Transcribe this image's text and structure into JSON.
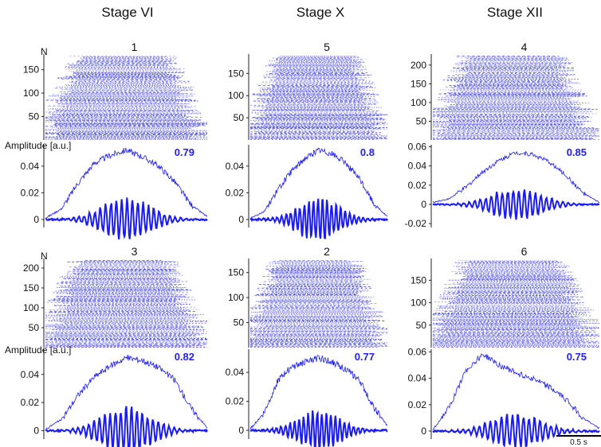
{
  "columns": [
    "Stage VI",
    "Stage X",
    "Stage XII"
  ],
  "colors": {
    "trace": "#1a1aff",
    "raster": "#2a2ad8",
    "axis": "#222222",
    "label": "#2222ee"
  },
  "labels": {
    "raster_ylabel": "N",
    "amp_ylabel": "Amplitude [a.u.]",
    "scale_bar": "0.5 s"
  },
  "chart_data": [
    {
      "type": "raster",
      "panel": "1",
      "column": "Stage VI",
      "n_rows": 180,
      "yticks": [
        50,
        100,
        150
      ],
      "ylim": [
        0,
        180
      ]
    },
    {
      "type": "line",
      "panel": "1",
      "column": "Stage VI",
      "value_label": "0.79",
      "yticks": [
        0,
        0.02,
        0.04
      ],
      "ylim": [
        -0.006,
        0.056
      ],
      "series": [
        {
          "shape": "envelope",
          "x": [
            0,
            0.2,
            0.4,
            0.6,
            0.8,
            1.0,
            1.2,
            1.4,
            1.6,
            1.8,
            2.0
          ],
          "values": [
            0.001,
            0.008,
            0.027,
            0.042,
            0.048,
            0.052,
            0.047,
            0.04,
            0.028,
            0.011,
            0.002
          ]
        },
        {
          "shape": "oscillation",
          "amplitude": 0.016
        }
      ]
    },
    {
      "type": "raster",
      "panel": "3",
      "column": "Stage X",
      "n_rows": 220,
      "yticks": [
        50,
        100,
        150,
        200
      ],
      "ylim": [
        0,
        220
      ]
    },
    {
      "type": "line",
      "panel": "3",
      "column": "Stage X",
      "value_label": "0.82",
      "yticks": [
        0,
        0.02,
        0.04
      ],
      "ylim": [
        -0.006,
        0.058
      ],
      "series": [
        {
          "shape": "envelope",
          "x": [
            0,
            0.2,
            0.4,
            0.6,
            0.8,
            1.0,
            1.2,
            1.4,
            1.6,
            1.8,
            2.0
          ],
          "values": [
            0.001,
            0.008,
            0.025,
            0.038,
            0.046,
            0.052,
            0.05,
            0.045,
            0.036,
            0.016,
            0.002
          ]
        },
        {
          "shape": "oscillation",
          "amplitude": 0.017
        }
      ]
    },
    {
      "type": "raster",
      "panel": "5",
      "column": "Stage XII",
      "n_rows": 190,
      "yticks": [
        50,
        100,
        150
      ],
      "ylim": [
        0,
        190
      ]
    },
    {
      "type": "line",
      "panel": "5",
      "column": "Stage XII",
      "value_label": "0.8",
      "yticks": [
        0,
        0.02,
        0.04
      ],
      "ylim": [
        -0.006,
        0.056
      ],
      "series": [
        {
          "shape": "envelope",
          "x": [
            0,
            0.2,
            0.4,
            0.6,
            0.8,
            1.0,
            1.2,
            1.4,
            1.6,
            1.8,
            2.0
          ],
          "values": [
            0.001,
            0.006,
            0.022,
            0.036,
            0.046,
            0.052,
            0.049,
            0.042,
            0.03,
            0.012,
            0.002
          ]
        },
        {
          "shape": "oscillation",
          "amplitude": 0.016
        }
      ]
    },
    {
      "type": "raster",
      "panel": "2",
      "column": "Stage VI",
      "n_rows": 175,
      "yticks": [
        50,
        100,
        150
      ],
      "ylim": [
        0,
        175
      ]
    },
    {
      "type": "line",
      "panel": "2",
      "column": "Stage VI",
      "value_label": "0.77",
      "yticks": [
        0,
        0.02,
        0.04
      ],
      "ylim": [
        -0.006,
        0.056
      ],
      "series": [
        {
          "shape": "envelope",
          "x": [
            0,
            0.2,
            0.4,
            0.6,
            0.8,
            1.0,
            1.2,
            1.4,
            1.6,
            1.8,
            2.0
          ],
          "values": [
            0.001,
            0.012,
            0.034,
            0.044,
            0.047,
            0.05,
            0.047,
            0.042,
            0.034,
            0.016,
            0.003
          ]
        },
        {
          "shape": "oscillation",
          "amplitude": 0.014
        }
      ]
    },
    {
      "type": "raster",
      "panel": "4",
      "column": "Stage X",
      "n_rows": 225,
      "yticks": [
        50,
        100,
        150,
        200
      ],
      "ylim": [
        0,
        225
      ]
    },
    {
      "type": "line",
      "panel": "4",
      "column": "Stage X",
      "value_label": "0.85",
      "yticks": [
        -0.02,
        0,
        0.02,
        0.04,
        0.06
      ],
      "ylim": [
        -0.024,
        0.062
      ],
      "series": [
        {
          "shape": "envelope",
          "x": [
            0,
            0.2,
            0.4,
            0.6,
            0.8,
            1.0,
            1.2,
            1.4,
            1.6,
            1.8,
            2.0
          ],
          "values": [
            0.002,
            0.006,
            0.018,
            0.034,
            0.046,
            0.054,
            0.052,
            0.044,
            0.03,
            0.012,
            0.002
          ]
        },
        {
          "shape": "oscillation",
          "amplitude": 0.016
        }
      ]
    },
    {
      "type": "raster",
      "panel": "6",
      "column": "Stage XII",
      "n_rows": 195,
      "yticks": [
        50,
        100,
        150
      ],
      "ylim": [
        0,
        195
      ]
    },
    {
      "type": "line",
      "panel": "6",
      "column": "Stage XII",
      "value_label": "0.75",
      "yticks": [
        0,
        0.02,
        0.04,
        0.06
      ],
      "ylim": [
        -0.006,
        0.062
      ],
      "series": [
        {
          "shape": "envelope",
          "x": [
            0,
            0.2,
            0.4,
            0.6,
            0.8,
            1.0,
            1.2,
            1.4,
            1.6,
            1.8,
            2.0
          ],
          "values": [
            0.001,
            0.018,
            0.046,
            0.058,
            0.05,
            0.044,
            0.04,
            0.033,
            0.024,
            0.01,
            0.002
          ]
        },
        {
          "shape": "oscillation",
          "amplitude": 0.013
        }
      ]
    }
  ]
}
